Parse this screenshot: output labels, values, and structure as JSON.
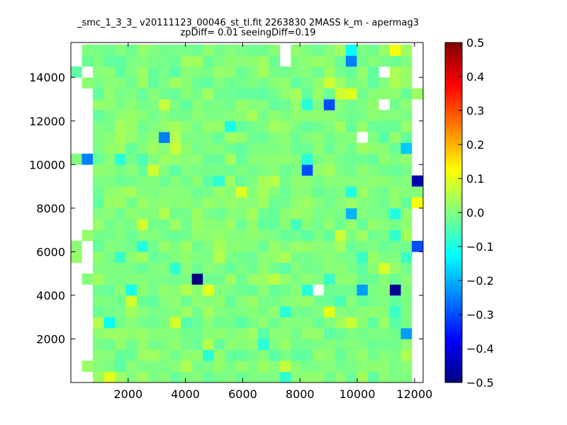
{
  "chart_data": {
    "type": "heatmap",
    "title": "_smc_1_3_3_ v20111123_00046_st_tl.fit 2263830 2MASS k_m - apermag3",
    "subtitle": "zpDiff= 0.01 seeingDiff=0.19",
    "xlabel": "",
    "ylabel": "",
    "xlim": [
      0,
      12300
    ],
    "ylim": [
      0,
      15600
    ],
    "x_ticks": [
      2000,
      4000,
      6000,
      8000,
      10000,
      12000
    ],
    "y_ticks": [
      2000,
      4000,
      6000,
      8000,
      10000,
      12000,
      14000
    ],
    "grid": false,
    "colormap": "jet",
    "colorbar": {
      "vmin": -0.5,
      "vmax": 0.5,
      "ticks": [
        0.5,
        0.4,
        0.3,
        0.2,
        0.1,
        0.0,
        -0.1,
        -0.2,
        -0.3,
        -0.4,
        -0.5
      ],
      "tick_labels": [
        "0.5",
        "0.4",
        "0.3",
        "0.2",
        "0.1",
        "0.0",
        "−0.1",
        "−0.2",
        "−0.3",
        "−0.4",
        "−0.5"
      ]
    },
    "grid_cells": {
      "x_start": 0,
      "y_start": 0,
      "cell_width": 384,
      "cell_height": 500,
      "columns": 32,
      "rows": 31,
      "default_value_range": [
        -0.05,
        0.05
      ],
      "missing_value_marker": null,
      "notable_cells": [
        {
          "x": 4500,
          "y": 4750,
          "value": -0.5
        },
        {
          "x": 11500,
          "y": 4250,
          "value": -0.48
        },
        {
          "x": 12000,
          "y": 9250,
          "value": -0.45
        },
        {
          "x": 9000,
          "y": 12750,
          "value": -0.3
        },
        {
          "x": 8300,
          "y": 9750,
          "value": -0.3
        },
        {
          "x": 12200,
          "y": 6250,
          "value": -0.3
        },
        {
          "x": 9800,
          "y": 14750,
          "value": -0.25
        },
        {
          "x": 3300,
          "y": 11250,
          "value": -0.25
        },
        {
          "x": 500,
          "y": 10250,
          "value": -0.25
        },
        {
          "x": 10300,
          "y": 4250,
          "value": -0.22
        },
        {
          "x": 11800,
          "y": 2250,
          "value": -0.22
        },
        {
          "x": 9600,
          "y": 7750,
          "value": -0.2
        },
        {
          "x": 11900,
          "y": 10750,
          "value": -0.18
        },
        {
          "x": 4700,
          "y": 4250,
          "value": 0.1
        },
        {
          "x": 9100,
          "y": 3250,
          "value": 0.1
        },
        {
          "x": 11200,
          "y": 15250,
          "value": 0.12
        },
        {
          "x": 12000,
          "y": 8250,
          "value": 0.12
        },
        {
          "x": 1300,
          "y": 250,
          "value": 0.1
        }
      ],
      "missing_cells": [
        {
          "x": 7300,
          "y": 14750
        },
        {
          "x": 7600,
          "y": 15250
        },
        {
          "x": 10800,
          "y": 14250
        },
        {
          "x": 10800,
          "y": 12750
        },
        {
          "x": 10000,
          "y": 11250
        },
        {
          "x": 8600,
          "y": 4250
        }
      ]
    }
  }
}
